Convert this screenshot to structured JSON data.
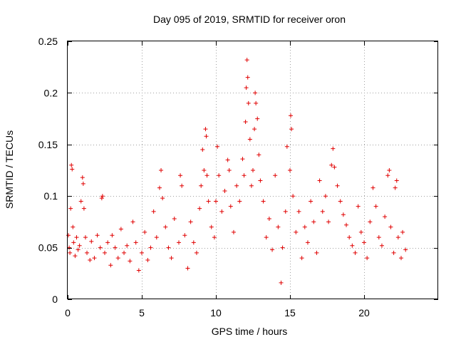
{
  "chart_data": {
    "type": "scatter",
    "title": "Day 095 of 2019, SRMTID for receiver oron",
    "xlabel": "GPS time / hours",
    "ylabel": "SRMTID / TECUs",
    "xlim": [
      0,
      25
    ],
    "ylim": [
      0,
      0.25
    ],
    "xticks": [
      0,
      5,
      10,
      15,
      20
    ],
    "xtick_labels": [
      "0",
      "5",
      "10",
      "15",
      "20"
    ],
    "yticks": [
      0,
      0.05,
      0.1,
      0.15,
      0.2,
      0.25
    ],
    "ytick_labels": [
      "0",
      "0.05",
      "0.1",
      "0.15",
      "0.2",
      "0.25"
    ],
    "grid": true,
    "marker": "+",
    "color": "#e00000",
    "series": [
      {
        "name": "SRMTID",
        "points": [
          [
            0.05,
            0.062
          ],
          [
            0.1,
            0.05
          ],
          [
            0.15,
            0.045
          ],
          [
            0.2,
            0.088
          ],
          [
            0.25,
            0.13
          ],
          [
            0.3,
            0.126
          ],
          [
            0.35,
            0.07
          ],
          [
            0.4,
            0.055
          ],
          [
            0.5,
            0.042
          ],
          [
            0.6,
            0.06
          ],
          [
            0.7,
            0.048
          ],
          [
            0.8,
            0.052
          ],
          [
            0.9,
            0.095
          ],
          [
            1.0,
            0.118
          ],
          [
            1.05,
            0.112
          ],
          [
            1.1,
            0.088
          ],
          [
            1.2,
            0.06
          ],
          [
            1.3,
            0.045
          ],
          [
            1.5,
            0.038
          ],
          [
            1.6,
            0.056
          ],
          [
            1.8,
            0.04
          ],
          [
            2.0,
            0.062
          ],
          [
            2.2,
            0.05
          ],
          [
            2.3,
            0.098
          ],
          [
            2.35,
            0.1
          ],
          [
            2.5,
            0.045
          ],
          [
            2.7,
            0.055
          ],
          [
            2.9,
            0.033
          ],
          [
            3.0,
            0.062
          ],
          [
            3.2,
            0.05
          ],
          [
            3.4,
            0.04
          ],
          [
            3.6,
            0.068
          ],
          [
            3.8,
            0.045
          ],
          [
            4.0,
            0.052
          ],
          [
            4.2,
            0.037
          ],
          [
            4.4,
            0.075
          ],
          [
            4.6,
            0.055
          ],
          [
            4.8,
            0.028
          ],
          [
            5.0,
            0.045
          ],
          [
            5.2,
            0.065
          ],
          [
            5.4,
            0.038
          ],
          [
            5.6,
            0.05
          ],
          [
            5.8,
            0.085
          ],
          [
            6.0,
            0.06
          ],
          [
            6.2,
            0.108
          ],
          [
            6.3,
            0.125
          ],
          [
            6.4,
            0.098
          ],
          [
            6.6,
            0.07
          ],
          [
            6.8,
            0.05
          ],
          [
            7.0,
            0.04
          ],
          [
            7.2,
            0.078
          ],
          [
            7.5,
            0.055
          ],
          [
            7.6,
            0.12
          ],
          [
            7.7,
            0.11
          ],
          [
            7.9,
            0.062
          ],
          [
            8.1,
            0.03
          ],
          [
            8.3,
            0.075
          ],
          [
            8.5,
            0.055
          ],
          [
            8.7,
            0.045
          ],
          [
            8.9,
            0.088
          ],
          [
            9.0,
            0.11
          ],
          [
            9.1,
            0.145
          ],
          [
            9.2,
            0.125
          ],
          [
            9.3,
            0.165
          ],
          [
            9.35,
            0.158
          ],
          [
            9.4,
            0.12
          ],
          [
            9.5,
            0.095
          ],
          [
            9.7,
            0.07
          ],
          [
            9.9,
            0.06
          ],
          [
            10.0,
            0.095
          ],
          [
            10.1,
            0.148
          ],
          [
            10.2,
            0.12
          ],
          [
            10.4,
            0.085
          ],
          [
            10.6,
            0.105
          ],
          [
            10.8,
            0.135
          ],
          [
            10.9,
            0.125
          ],
          [
            11.0,
            0.09
          ],
          [
            11.2,
            0.065
          ],
          [
            11.4,
            0.11
          ],
          [
            11.6,
            0.095
          ],
          [
            11.8,
            0.136
          ],
          [
            11.9,
            0.12
          ],
          [
            12.0,
            0.172
          ],
          [
            12.05,
            0.205
          ],
          [
            12.1,
            0.232
          ],
          [
            12.15,
            0.215
          ],
          [
            12.2,
            0.19
          ],
          [
            12.3,
            0.155
          ],
          [
            12.4,
            0.11
          ],
          [
            12.5,
            0.125
          ],
          [
            12.6,
            0.165
          ],
          [
            12.65,
            0.2
          ],
          [
            12.7,
            0.19
          ],
          [
            12.8,
            0.175
          ],
          [
            12.9,
            0.14
          ],
          [
            13.0,
            0.115
          ],
          [
            13.2,
            0.095
          ],
          [
            13.4,
            0.06
          ],
          [
            13.6,
            0.078
          ],
          [
            13.8,
            0.048
          ],
          [
            14.0,
            0.12
          ],
          [
            14.2,
            0.07
          ],
          [
            14.4,
            0.016
          ],
          [
            14.5,
            0.05
          ],
          [
            14.7,
            0.085
          ],
          [
            14.8,
            0.148
          ],
          [
            15.0,
            0.125
          ],
          [
            15.05,
            0.178
          ],
          [
            15.1,
            0.165
          ],
          [
            15.2,
            0.1
          ],
          [
            15.4,
            0.065
          ],
          [
            15.6,
            0.085
          ],
          [
            15.8,
            0.04
          ],
          [
            16.0,
            0.07
          ],
          [
            16.2,
            0.055
          ],
          [
            16.4,
            0.095
          ],
          [
            16.6,
            0.075
          ],
          [
            16.8,
            0.045
          ],
          [
            17.0,
            0.115
          ],
          [
            17.2,
            0.085
          ],
          [
            17.4,
            0.1
          ],
          [
            17.6,
            0.075
          ],
          [
            17.8,
            0.13
          ],
          [
            17.9,
            0.146
          ],
          [
            18.0,
            0.128
          ],
          [
            18.2,
            0.11
          ],
          [
            18.4,
            0.095
          ],
          [
            18.6,
            0.082
          ],
          [
            18.8,
            0.072
          ],
          [
            19.0,
            0.06
          ],
          [
            19.2,
            0.052
          ],
          [
            19.4,
            0.045
          ],
          [
            19.6,
            0.09
          ],
          [
            19.8,
            0.065
          ],
          [
            20.0,
            0.055
          ],
          [
            20.2,
            0.04
          ],
          [
            20.4,
            0.075
          ],
          [
            20.6,
            0.108
          ],
          [
            20.8,
            0.09
          ],
          [
            21.0,
            0.06
          ],
          [
            21.2,
            0.052
          ],
          [
            21.4,
            0.08
          ],
          [
            21.6,
            0.12
          ],
          [
            21.7,
            0.125
          ],
          [
            21.8,
            0.07
          ],
          [
            22.0,
            0.045
          ],
          [
            22.1,
            0.108
          ],
          [
            22.2,
            0.115
          ],
          [
            22.3,
            0.06
          ],
          [
            22.5,
            0.04
          ],
          [
            22.6,
            0.065
          ],
          [
            22.8,
            0.048
          ]
        ]
      }
    ]
  }
}
